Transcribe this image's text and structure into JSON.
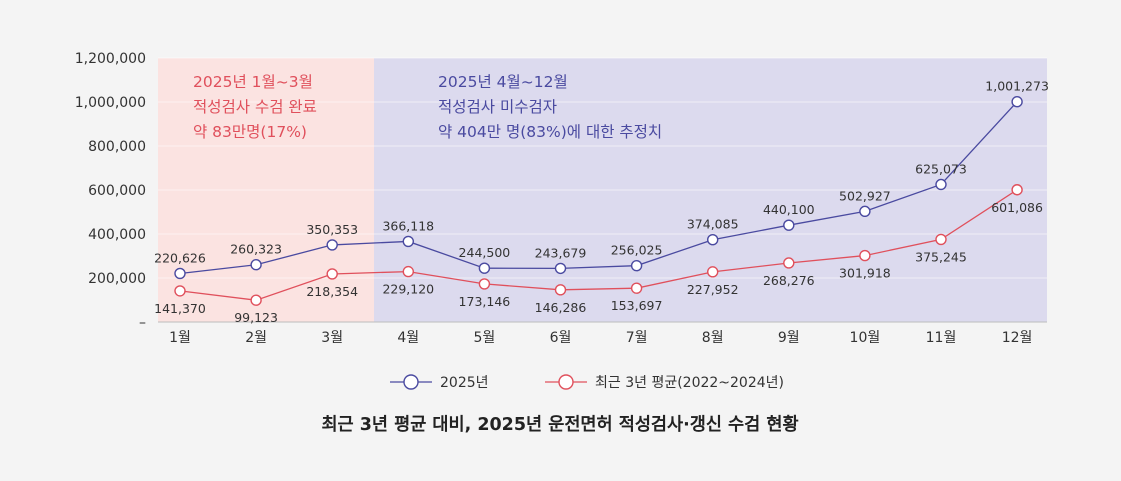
{
  "chart_data": {
    "type": "line",
    "title": "최근 3년 평균 대비, 2025년 운전면허 적성검사·갱신 수검 현황",
    "categories": [
      "1월",
      "2월",
      "3월",
      "4월",
      "5월",
      "6월",
      "7월",
      "8월",
      "9월",
      "10월",
      "11월",
      "12월"
    ],
    "ylim": [
      0,
      1200000
    ],
    "y_ticks": [
      "–",
      "200,000",
      "400,000",
      "600,000",
      "800,000",
      "1,000,000",
      "1,200,000"
    ],
    "grid": true,
    "legend_position": "bottom-center",
    "series": [
      {
        "name": "2025년",
        "color": "#4a4aa0",
        "values": [
          220626,
          260323,
          350353,
          366118,
          244500,
          243679,
          256025,
          374085,
          440100,
          502927,
          625073,
          1001273
        ],
        "labels": [
          "220,626",
          "260,323",
          "350,353",
          "366,118",
          "244,500",
          "243,679",
          "256,025",
          "374,085",
          "440,100",
          "502,927",
          "625,073",
          "1,001,273"
        ]
      },
      {
        "name": "최근 3년 평균(2022~2024년)",
        "color": "#e0505c",
        "values": [
          141370,
          99123,
          218354,
          229120,
          173146,
          146286,
          153697,
          227952,
          268276,
          301918,
          375245,
          601086
        ],
        "labels": [
          "141,370",
          "99,123",
          "218,354",
          "229,120",
          "173,146",
          "146,286",
          "153,697",
          "227,952",
          "268,276",
          "301,918",
          "375,245",
          "601,086"
        ]
      }
    ],
    "regions": [
      {
        "color": "#fbe3e1",
        "text_color": "#e0505c",
        "lines": [
          "2025년 1월~3월",
          "적성검사 수검 완료",
          "약 83만명(17%)"
        ]
      },
      {
        "color": "#dcdaee",
        "text_color": "#4a4aa0",
        "lines": [
          "2025년 4월~12월",
          "적성검사 미수검자",
          "약 404만 명(83%)에 대한 추정치"
        ]
      }
    ]
  }
}
